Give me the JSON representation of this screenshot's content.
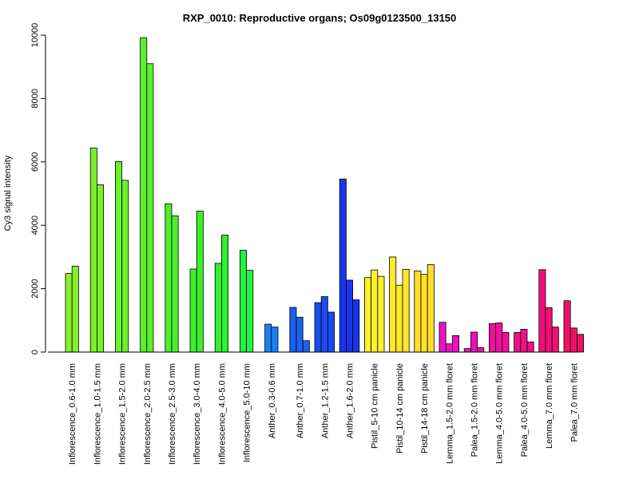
{
  "chart_data": {
    "type": "bar",
    "title": "RXP_0010: Reproductive organs; Os09g0123500_13150",
    "xlabel": "",
    "ylabel": "Cy3 signal intensity",
    "ylim": [
      0,
      10000
    ],
    "yticks": [
      0,
      2000,
      4000,
      6000,
      8000,
      10000
    ],
    "grid": false,
    "legend": "none",
    "categories": [
      "Inflorescence_0.6-1.0 mm",
      "Inflorescence_1.0-1.5 mm",
      "Inflorescence_1.5-2.0 mm",
      "Inflorescence_2.0-2.5 mm",
      "Inflorescence_2.5-3.0 mm",
      "Inflorescence_3.0-4.0 mm",
      "Inflorescence_4.0-5.0 mm",
      "Inflorescence_5.0-10 mm",
      "Anther_0.3-0.6 mm",
      "Anther_0.7-1.0 mm",
      "Anther_1.2-1.5 mm",
      "Anther_1.6-2.0 mm",
      "Pistil_5-10 cm panicle",
      "Pistil_10-14 cm panicle",
      "Pistil_14-18 cm panicle",
      "Lemma_1.5-2.0 mm floret",
      "Palea_1.5-2.0 mm floret",
      "Lemma_4.0-5.0 mm floret",
      "Palea_4.0-5.0 mm floret",
      "Lemma_7.0 mm floret",
      "Palea_7.0 mm floret"
    ],
    "groups": [
      {
        "values": [
          2480,
          2710
        ],
        "color": "#88f02a"
      },
      {
        "values": [
          6440,
          5280
        ],
        "color": "#7af02a"
      },
      {
        "values": [
          6010,
          5420
        ],
        "color": "#6cf02a"
      },
      {
        "values": [
          9920,
          9100
        ],
        "color": "#5cf02a"
      },
      {
        "values": [
          4680,
          4300
        ],
        "color": "#4cf02a"
      },
      {
        "values": [
          2620,
          4450
        ],
        "color": "#3cf02a"
      },
      {
        "values": [
          2800,
          3690
        ],
        "color": "#30f030"
      },
      {
        "values": [
          3210,
          2580
        ],
        "color": "#25f042"
      },
      {
        "values": [
          880,
          790
        ],
        "color": "#1a7ff5"
      },
      {
        "values": [
          1410,
          1100,
          360
        ],
        "color": "#1a62f0"
      },
      {
        "values": [
          1560,
          1750,
          1260
        ],
        "color": "#1a4cf0"
      },
      {
        "values": [
          5460,
          2270,
          1650
        ],
        "color": "#1a34ec"
      },
      {
        "values": [
          2350,
          2590,
          2390
        ],
        "color": "#fff12a"
      },
      {
        "values": [
          3000,
          2110,
          2610
        ],
        "color": "#ffe82a"
      },
      {
        "values": [
          2560,
          2450,
          2760
        ],
        "color": "#ffdf2a"
      },
      {
        "values": [
          940,
          260,
          520
        ],
        "color": "#f010c8"
      },
      {
        "values": [
          110,
          630,
          140
        ],
        "color": "#f010b4"
      },
      {
        "values": [
          900,
          920,
          620
        ],
        "color": "#f010a0"
      },
      {
        "values": [
          620,
          720,
          320
        ],
        "color": "#f0108a"
      },
      {
        "values": [
          2600,
          1400,
          790
        ],
        "color": "#f01078"
      },
      {
        "values": [
          1620,
          760,
          560
        ],
        "color": "#f01066"
      }
    ]
  }
}
